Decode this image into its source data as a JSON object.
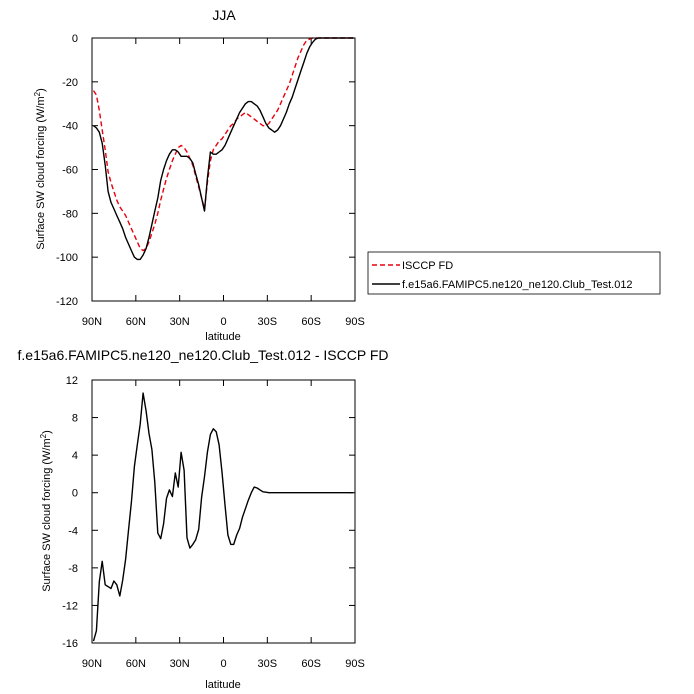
{
  "chart_data": [
    {
      "type": "line",
      "title": "JJA",
      "xlabel": "latitude",
      "ylabel": "Surface SW cloud forcing (W/m",
      "ylabel_sup": "2",
      "ylabel_end": ")",
      "xlim": [
        90,
        -90
      ],
      "ylim": [
        -120,
        0
      ],
      "xticks": [
        {
          "v": 90,
          "label": "90N"
        },
        {
          "v": 60,
          "label": "60N"
        },
        {
          "v": 30,
          "label": "30N"
        },
        {
          "v": 0,
          "label": "0"
        },
        {
          "v": -30,
          "label": "30S"
        },
        {
          "v": -60,
          "label": "60S"
        },
        {
          "v": -90,
          "label": "90S"
        }
      ],
      "yticks": [
        {
          "v": 0,
          "label": "0"
        },
        {
          "v": -20,
          "label": "-20"
        },
        {
          "v": -40,
          "label": "-40"
        },
        {
          "v": -60,
          "label": "-60"
        },
        {
          "v": -80,
          "label": "-80"
        },
        {
          "v": -100,
          "label": "-100"
        },
        {
          "v": -120,
          "label": "-120"
        }
      ],
      "legend_placement": "right",
      "series": [
        {
          "name": "ISCCP FD",
          "color": "#e8000b",
          "dash": true,
          "x": [
            89,
            87,
            85,
            83,
            81,
            79,
            77,
            75,
            73,
            71,
            69,
            67,
            65,
            63,
            61,
            59,
            57,
            55,
            53,
            51,
            49,
            47,
            45,
            43,
            41,
            39,
            37,
            35,
            33,
            31,
            29,
            27,
            25,
            23,
            21,
            19,
            17,
            15,
            13,
            11,
            9,
            7,
            5,
            3,
            1,
            -1,
            -3,
            -5,
            -7,
            -9,
            -11,
            -13,
            -15,
            -17,
            -19,
            -21,
            -23,
            -25,
            -27,
            -29,
            -31,
            -33,
            -35,
            -37,
            -39,
            -41,
            -43,
            -45,
            -47,
            -49,
            -51,
            -53,
            -55,
            -57,
            -59,
            -61,
            -63,
            -65,
            -67,
            -69,
            -71,
            -73,
            -75,
            -77,
            -79,
            -81,
            -83,
            -85,
            -87,
            -89
          ],
          "y": [
            -24,
            -26,
            -33,
            -42,
            -51,
            -61,
            -66,
            -70,
            -74,
            -77,
            -79,
            -81,
            -84,
            -87,
            -90,
            -93,
            -96,
            -97,
            -96,
            -93,
            -89,
            -85,
            -80,
            -74,
            -69,
            -64,
            -60,
            -56,
            -53,
            -50,
            -49,
            -50,
            -52,
            -55,
            -58,
            -63,
            -68,
            -73,
            -78,
            -66,
            -56,
            -51,
            -49,
            -47,
            -46,
            -44,
            -42,
            -40,
            -39,
            -37,
            -36,
            -35,
            -34,
            -35,
            -36,
            -37,
            -38,
            -39,
            -40,
            -40,
            -39,
            -37,
            -35,
            -33,
            -30,
            -27,
            -24,
            -21,
            -17,
            -13,
            -9,
            -6,
            -3,
            -1,
            -0.5,
            0,
            0,
            0,
            0,
            0,
            0,
            0,
            0,
            0,
            0,
            0,
            0,
            0,
            0,
            0
          ]
        },
        {
          "name": "f.e15a6.FAMIPC5.ne120_ne120.Club_Test.012",
          "color": "#000000",
          "dash": false,
          "x": [
            89,
            87,
            85,
            83,
            81,
            79,
            77,
            75,
            73,
            71,
            69,
            67,
            65,
            63,
            61,
            59,
            57,
            55,
            53,
            51,
            49,
            47,
            45,
            43,
            41,
            39,
            37,
            35,
            33,
            31,
            29,
            27,
            25,
            23,
            21,
            19,
            17,
            15,
            13,
            11,
            9,
            7,
            5,
            3,
            1,
            -1,
            -3,
            -5,
            -7,
            -9,
            -11,
            -13,
            -15,
            -17,
            -19,
            -21,
            -23,
            -25,
            -27,
            -29,
            -31,
            -33,
            -35,
            -37,
            -39,
            -41,
            -43,
            -45,
            -47,
            -49,
            -51,
            -53,
            -55,
            -57,
            -59,
            -61,
            -63,
            -65,
            -67,
            -69,
            -71,
            -73,
            -75,
            -77,
            -79,
            -81,
            -83,
            -85,
            -87,
            -89
          ],
          "y": [
            -40,
            -41,
            -43,
            -48,
            -58,
            -70,
            -75,
            -78,
            -81,
            -84,
            -87,
            -91,
            -94,
            -97,
            -100,
            -101,
            -101,
            -99,
            -96,
            -91,
            -85,
            -79,
            -73,
            -65,
            -60,
            -56,
            -53,
            -51,
            -51,
            -52,
            -54,
            -54,
            -54,
            -55,
            -57,
            -62,
            -67,
            -73,
            -79,
            -64,
            -52,
            -53,
            -53,
            -52,
            -51,
            -49,
            -46,
            -43,
            -40,
            -37,
            -34,
            -32,
            -30,
            -29,
            -29,
            -30,
            -31,
            -33,
            -36,
            -39,
            -41,
            -42,
            -43,
            -42,
            -40,
            -37,
            -34,
            -30,
            -27,
            -23,
            -19,
            -15,
            -11,
            -7,
            -4,
            -2,
            -0.5,
            0,
            0,
            0,
            0,
            0,
            0,
            0,
            0,
            0,
            0,
            0,
            0,
            0
          ]
        }
      ]
    },
    {
      "type": "line",
      "title": "f.e15a6.FAMIPC5.ne120_ne120.Club_Test.012 - ISCCP FD",
      "xlabel": "latitude",
      "ylabel": "Surface SW cloud forcing (W/m",
      "ylabel_sup": "2",
      "ylabel_end": ")",
      "xlim": [
        90,
        -90
      ],
      "ylim": [
        -16,
        12
      ],
      "xticks": [
        {
          "v": 90,
          "label": "90N"
        },
        {
          "v": 60,
          "label": "60N"
        },
        {
          "v": 30,
          "label": "30N"
        },
        {
          "v": 0,
          "label": "0"
        },
        {
          "v": -30,
          "label": "30S"
        },
        {
          "v": -60,
          "label": "60S"
        },
        {
          "v": -90,
          "label": "90S"
        }
      ],
      "yticks": [
        {
          "v": 12,
          "label": "12"
        },
        {
          "v": 8,
          "label": "8"
        },
        {
          "v": 4,
          "label": "4"
        },
        {
          "v": 0,
          "label": "0"
        },
        {
          "v": -4,
          "label": "-4"
        },
        {
          "v": -8,
          "label": "-8"
        },
        {
          "v": -12,
          "label": "-12"
        },
        {
          "v": -16,
          "label": "-16"
        }
      ],
      "series": [
        {
          "color": "#000000",
          "x": [
            89,
            87,
            85,
            83,
            81,
            79,
            77,
            75,
            73,
            71,
            69,
            67,
            65,
            63,
            61,
            59,
            57,
            55,
            53,
            51,
            49,
            47,
            45,
            43,
            41,
            39,
            37,
            35,
            33,
            31,
            29,
            27,
            25,
            23,
            21,
            19,
            17,
            15,
            13,
            11,
            9,
            7,
            5,
            3,
            1,
            -1,
            -3,
            -5,
            -7,
            -9,
            -11,
            -13,
            -15,
            -17,
            -19,
            -21,
            -23,
            -25,
            -27,
            -29,
            -31,
            -33,
            -35,
            -37,
            -39,
            -41,
            -43,
            -45,
            -47,
            -49,
            -51,
            -53,
            -55,
            -57,
            -59,
            -61,
            -63,
            -65,
            -67,
            -69,
            -71,
            -73,
            -75,
            -77,
            -79,
            -81,
            -83,
            -85,
            -87,
            -89
          ],
          "y": [
            -15.8,
            -14.7,
            -9.5,
            -7.3,
            -9.8,
            -10.0,
            -10.2,
            -9.4,
            -9.8,
            -11.0,
            -9.3,
            -7.1,
            -4.0,
            -1.0,
            2.8,
            5.1,
            7.3,
            10.6,
            8.7,
            6.3,
            4.6,
            1.1,
            -4.3,
            -4.9,
            -3.3,
            -0.6,
            0.3,
            -0.4,
            2.1,
            0.6,
            4.3,
            2.4,
            -4.8,
            -5.9,
            -5.5,
            -5.0,
            -3.9,
            -0.5,
            1.7,
            4.3,
            6.2,
            6.8,
            6.5,
            5.1,
            2.2,
            -1.3,
            -4.5,
            -5.5,
            -5.5,
            -4.5,
            -3.8,
            -2.6,
            -1.7,
            -0.8,
            0.0,
            0.6,
            0.5,
            0.3,
            0.1,
            0.05,
            0.0,
            0.0,
            0.0,
            0.0,
            0.0,
            0.0,
            0.0,
            0.0,
            0.0,
            0.0,
            0.0,
            0.0,
            0.0,
            0.0,
            0.0,
            0.0,
            0.0,
            0.0,
            0.0,
            0.0,
            0.0,
            0.0,
            0.0,
            0.0,
            0.0,
            0.0,
            0.0,
            0.0,
            0.0,
            0.0
          ]
        }
      ]
    }
  ]
}
